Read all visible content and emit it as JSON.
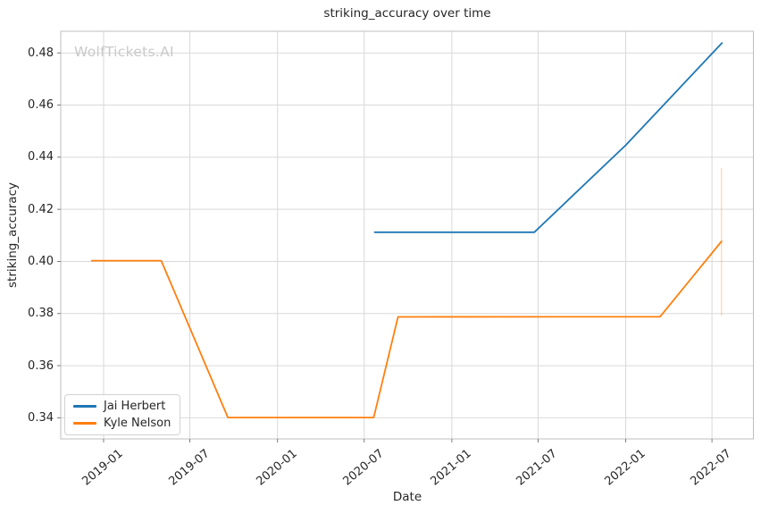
{
  "figure": {
    "watermark": "WolfTickets.AI"
  },
  "chart_data": {
    "type": "line",
    "title": "striking_accuracy over time",
    "xlabel": "Date",
    "ylabel": "striking_accuracy",
    "grid": true,
    "legend_position": "lower left",
    "x_range": [
      "2018-10-03",
      "2022-09-26"
    ],
    "y_range": [
      0.3319,
      0.4883
    ],
    "x_ticks": [
      {
        "value": "2019-01-01",
        "label": "2019-01"
      },
      {
        "value": "2019-07-01",
        "label": "2019-07"
      },
      {
        "value": "2020-01-01",
        "label": "2020-01"
      },
      {
        "value": "2020-07-01",
        "label": "2020-07"
      },
      {
        "value": "2021-01-01",
        "label": "2021-01"
      },
      {
        "value": "2021-07-01",
        "label": "2021-07"
      },
      {
        "value": "2022-01-01",
        "label": "2022-01"
      },
      {
        "value": "2022-07-01",
        "label": "2022-07"
      }
    ],
    "y_ticks": [
      {
        "value": 0.34,
        "label": "0.34"
      },
      {
        "value": 0.36,
        "label": "0.36"
      },
      {
        "value": 0.38,
        "label": "0.38"
      },
      {
        "value": 0.4,
        "label": "0.40"
      },
      {
        "value": 0.42,
        "label": "0.42"
      },
      {
        "value": 0.44,
        "label": "0.44"
      },
      {
        "value": 0.46,
        "label": "0.46"
      },
      {
        "value": 0.48,
        "label": "0.48"
      }
    ],
    "series": [
      {
        "name": "Jai Herbert",
        "color": "#1f77b4",
        "points": [
          [
            "2020-07-23",
            0.4112
          ],
          [
            "2021-06-23",
            0.4112
          ],
          [
            "2022-01-01",
            0.4446
          ],
          [
            "2022-07-22",
            0.4838
          ]
        ]
      },
      {
        "name": "Kyle Nelson",
        "color": "#ff7f0e",
        "points": [
          [
            "2018-12-07",
            0.4003
          ],
          [
            "2019-05-02",
            0.4003
          ],
          [
            "2019-09-19",
            0.3401
          ],
          [
            "2020-07-21",
            0.3401
          ],
          [
            "2020-09-10",
            0.3787
          ],
          [
            "2022-03-14",
            0.3788
          ],
          [
            "2022-07-21",
            0.4077
          ]
        ],
        "error_bar": {
          "x": "2022-07-21",
          "y_low": 0.3792,
          "y_high": 0.4359
        }
      }
    ],
    "style": {
      "background": "#ffffff",
      "grid_color": "#d9d9d9",
      "spine_color": "#bfbfbf",
      "tick_color": "#6e6e6e",
      "text_color": "#262626",
      "watermark_color": "#c9c9c9"
    }
  }
}
